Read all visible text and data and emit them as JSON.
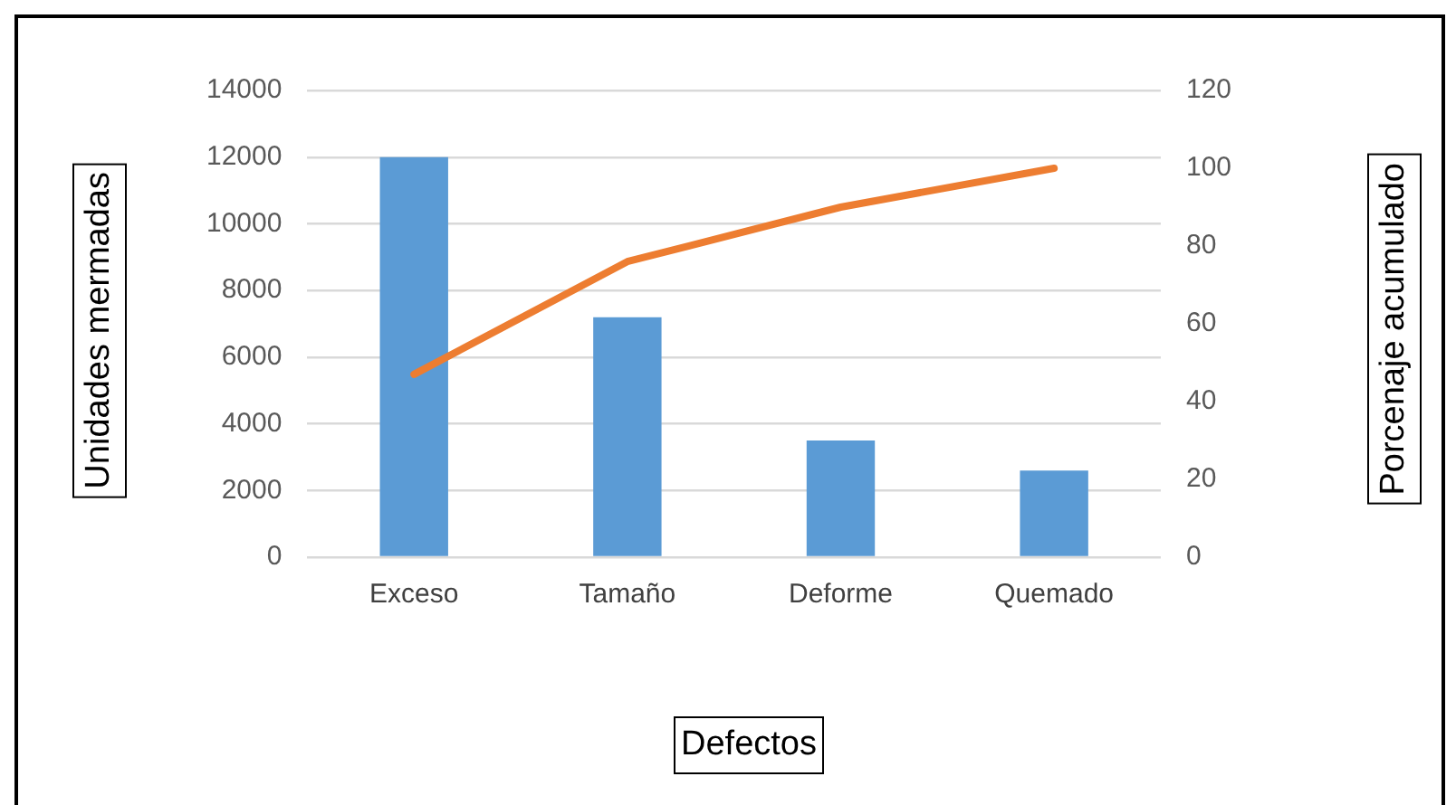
{
  "chart_data": {
    "type": "bar",
    "xlabel": "Defectos",
    "ylabel": "Unidades mermadas",
    "y2label": "Porcenaje acumulado",
    "categories": [
      "Exceso",
      "Tamaño",
      "Deforme",
      "Quemado"
    ],
    "series": [
      {
        "color": "#5b9bd5",
        "values": [
          12000,
          7200,
          3500,
          2600
        ]
      },
      {
        "type": "line",
        "axis": "y2",
        "color": "#ed7d31",
        "values": [
          47,
          76,
          90,
          100
        ],
        "marker": "none"
      }
    ],
    "ylim": [
      0,
      14000
    ],
    "yticks": [
      0,
      2000,
      4000,
      6000,
      8000,
      10000,
      12000,
      14000
    ],
    "y2lim": [
      0,
      120
    ],
    "y2ticks": [
      0,
      20,
      40,
      60,
      80,
      100,
      120
    ],
    "grid": "y",
    "legend": false
  }
}
